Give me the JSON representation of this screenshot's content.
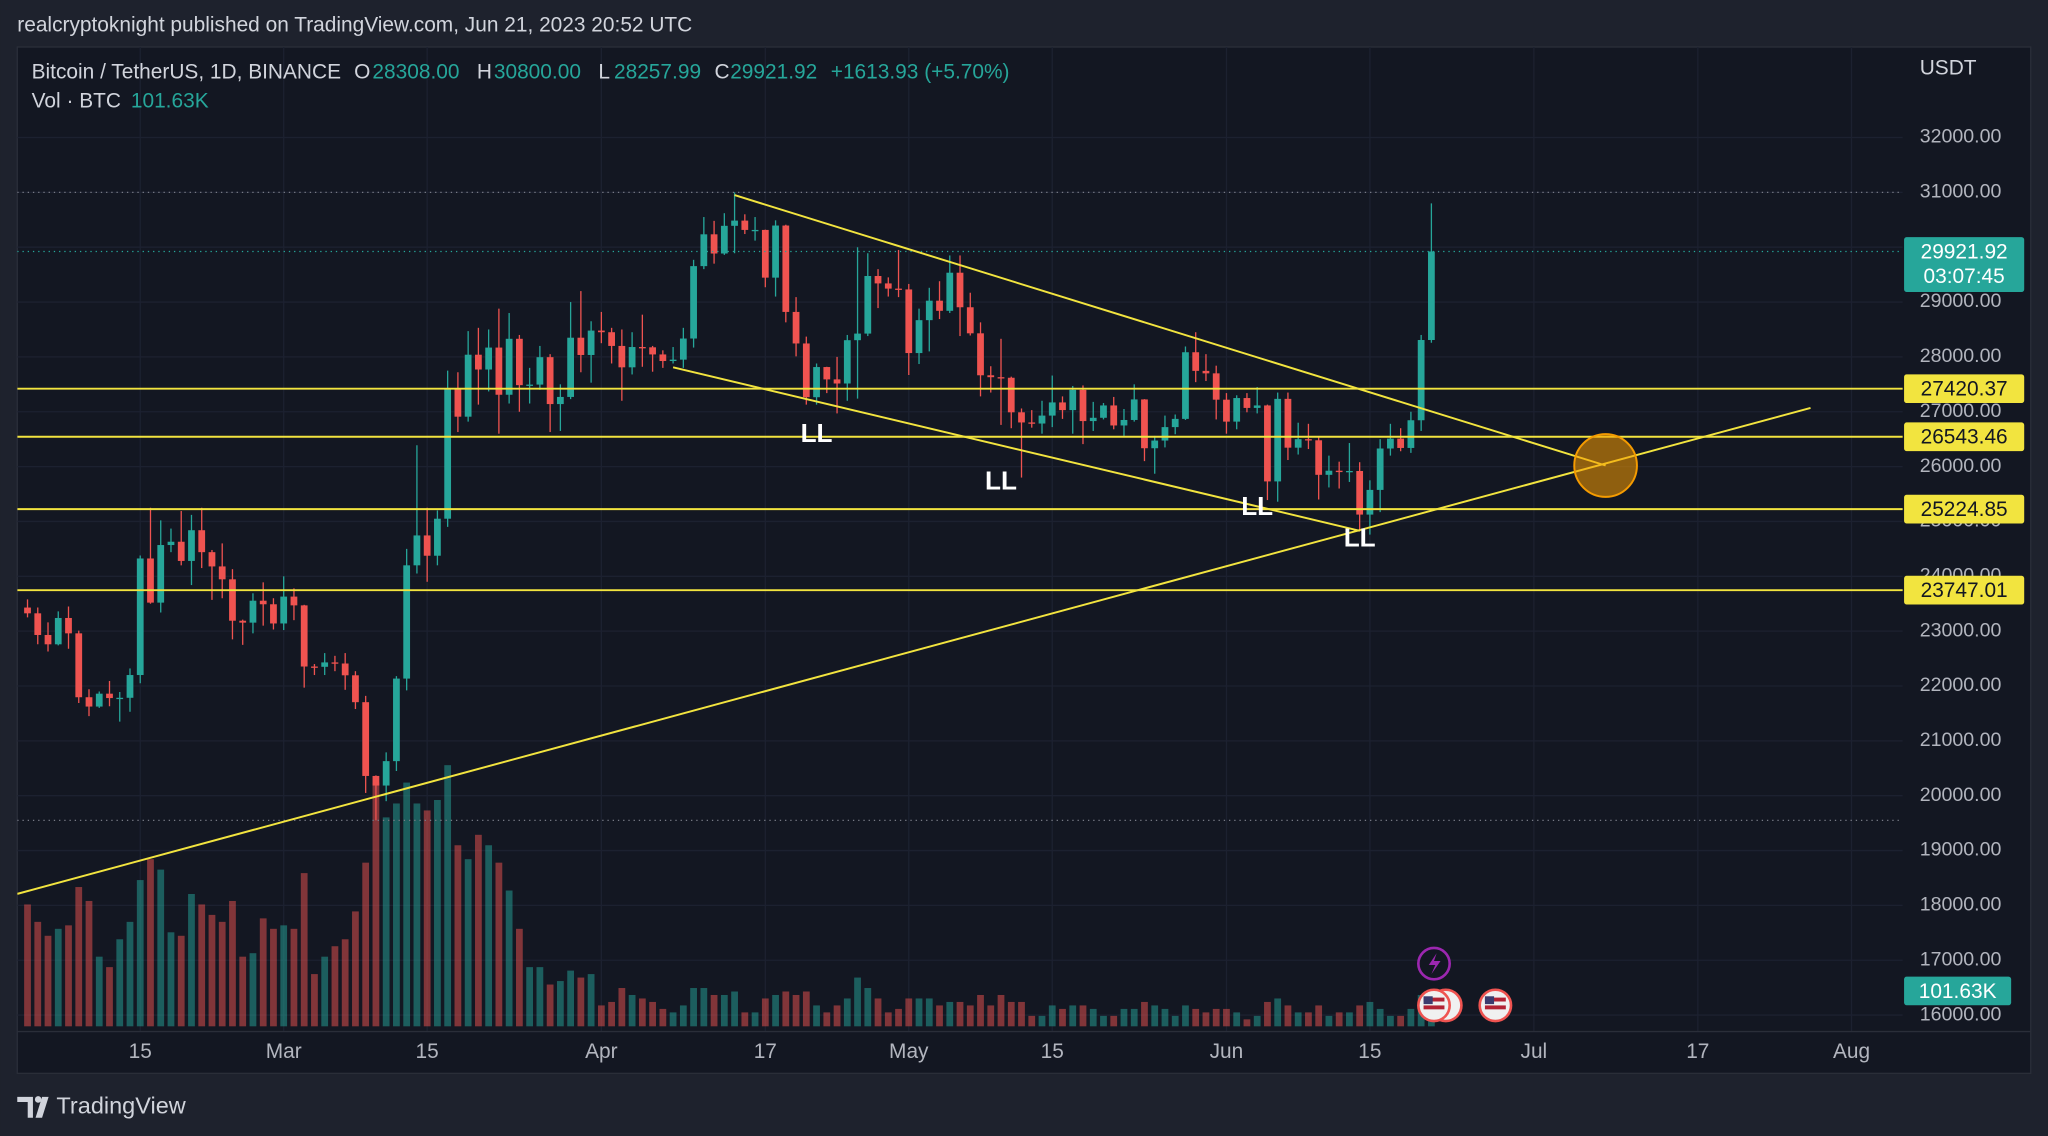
{
  "header": {
    "publisher": "realcryptoknight published on TradingView.com, Jun 21, 2023 20:52 UTC"
  },
  "legend": {
    "symbol": "Bitcoin / TetherUS, 1D, BINANCE",
    "o_key": "O",
    "open": "28308.00",
    "h_key": "H",
    "high": "30800.00",
    "l_key": "L",
    "low": "28257.99",
    "c_key": "C",
    "close": "29921.92",
    "change": "+1613.93 (+5.70%)",
    "volume_name": "Vol · BTC"
  },
  "footer": {
    "brand": "TradingView"
  },
  "chart_data": {
    "type": "candlestick",
    "price_unit": "USDT",
    "countdown": "03:07:45",
    "up_color": "#26a69a",
    "down_color": "#ef5350",
    "line_color": "#f2e43f",
    "xlim": [
      "Feb 3",
      "Aug 6"
    ],
    "xticks": [
      {
        "value": "Feb 15",
        "label": "15"
      },
      {
        "value": "Mar 1",
        "label": "Mar"
      },
      {
        "value": "Mar 15",
        "label": "15"
      },
      {
        "value": "Apr 1",
        "label": "Apr"
      },
      {
        "value": "Apr 17",
        "label": "17"
      },
      {
        "value": "May 1",
        "label": "May"
      },
      {
        "value": "May 15",
        "label": "15"
      },
      {
        "value": "Jun 1",
        "label": "Jun"
      },
      {
        "value": "Jun 15",
        "label": "15"
      },
      {
        "value": "Jul 1",
        "label": "Jul"
      },
      {
        "value": "Jul 17",
        "label": "17"
      },
      {
        "value": "Aug 1",
        "label": "Aug"
      }
    ],
    "ylim": [
      15700,
      33650
    ],
    "yticks": [
      {
        "value": 16000,
        "label": "16000.00"
      },
      {
        "value": 17000,
        "label": "17000.00"
      },
      {
        "value": 18000,
        "label": "18000.00"
      },
      {
        "value": 19000,
        "label": "19000.00"
      },
      {
        "value": 20000,
        "label": "20000.00"
      },
      {
        "value": 21000,
        "label": "21000.00"
      },
      {
        "value": 22000,
        "label": "22000.00"
      },
      {
        "value": 23000,
        "label": "23000.00"
      },
      {
        "value": 24000,
        "label": "24000.00"
      },
      {
        "value": 25000,
        "label": "25000.00"
      },
      {
        "value": 26000,
        "label": "26000.00"
      },
      {
        "value": 27000,
        "label": "27000.00"
      },
      {
        "value": 28000,
        "label": "28000.00"
      },
      {
        "value": 29000,
        "label": "29000.00"
      },
      {
        "value": 30000,
        "label": "30000.00"
      },
      {
        "value": 31000,
        "label": "31000.00"
      },
      {
        "value": 32000,
        "label": "32000.00"
      }
    ],
    "grid": true,
    "x": [
      "Feb 4",
      "Feb 5",
      "Feb 6",
      "Feb 7",
      "Feb 8",
      "Feb 9",
      "Feb 10",
      "Feb 11",
      "Feb 12",
      "Feb 13",
      "Feb 14",
      "Feb 15",
      "Feb 16",
      "Feb 17",
      "Feb 18",
      "Feb 19",
      "Feb 20",
      "Feb 21",
      "Feb 22",
      "Feb 23",
      "Feb 24",
      "Feb 25",
      "Feb 26",
      "Feb 27",
      "Feb 28",
      "Mar 1",
      "Mar 2",
      "Mar 3",
      "Mar 4",
      "Mar 5",
      "Mar 6",
      "Mar 7",
      "Mar 8",
      "Mar 9",
      "Mar 10",
      "Mar 11",
      "Mar 12",
      "Mar 13",
      "Mar 14",
      "Mar 15",
      "Mar 16",
      "Mar 17",
      "Mar 18",
      "Mar 19",
      "Mar 20",
      "Mar 21",
      "Mar 22",
      "Mar 23",
      "Mar 24",
      "Mar 25",
      "Mar 26",
      "Mar 27",
      "Mar 28",
      "Mar 29",
      "Mar 30",
      "Mar 31",
      "Apr 1",
      "Apr 2",
      "Apr 3",
      "Apr 4",
      "Apr 5",
      "Apr 6",
      "Apr 7",
      "Apr 8",
      "Apr 9",
      "Apr 10",
      "Apr 11",
      "Apr 12",
      "Apr 13",
      "Apr 14",
      "Apr 15",
      "Apr 16",
      "Apr 17",
      "Apr 18",
      "Apr 19",
      "Apr 20",
      "Apr 21",
      "Apr 22",
      "Apr 23",
      "Apr 24",
      "Apr 25",
      "Apr 26",
      "Apr 27",
      "Apr 28",
      "Apr 29",
      "Apr 30",
      "May 1",
      "May 2",
      "May 3",
      "May 4",
      "May 5",
      "May 6",
      "May 7",
      "May 8",
      "May 9",
      "May 10",
      "May 11",
      "May 12",
      "May 13",
      "May 14",
      "May 15",
      "May 16",
      "May 17",
      "May 18",
      "May 19",
      "May 20",
      "May 21",
      "May 22",
      "May 23",
      "May 24",
      "May 25",
      "May 26",
      "May 27",
      "May 28",
      "May 29",
      "May 30",
      "May 31",
      "Jun 1",
      "Jun 2",
      "Jun 3",
      "Jun 4",
      "Jun 5",
      "Jun 6",
      "Jun 7",
      "Jun 8",
      "Jun 9",
      "Jun 10",
      "Jun 11",
      "Jun 12",
      "Jun 13",
      "Jun 14",
      "Jun 15",
      "Jun 16",
      "Jun 17",
      "Jun 18",
      "Jun 19",
      "Jun 20",
      "Jun 21"
    ],
    "open": [
      23430,
      23325,
      22930,
      22760,
      23240,
      22960,
      21795,
      21625,
      21860,
      21780,
      21785,
      22200,
      24325,
      23520,
      24570,
      24630,
      24280,
      24840,
      24440,
      24180,
      23945,
      23190,
      23155,
      23555,
      23490,
      23140,
      23630,
      23470,
      22355,
      22350,
      22430,
      22410,
      22195,
      21705,
      20360,
      20185,
      20630,
      22135,
      24200,
      24745,
      24375,
      25050,
      27425,
      26910,
      28040,
      27770,
      28170,
      27310,
      28330,
      27485,
      27495,
      27995,
      27140,
      27270,
      28350,
      28035,
      28480,
      28450,
      28200,
      27810,
      28180,
      28175,
      28045,
      27925,
      27950,
      28335,
      29655,
      30235,
      29885,
      30390,
      30485,
      30315,
      30315,
      29445,
      30395,
      28820,
      28245,
      27265,
      27815,
      27590,
      27515,
      28305,
      28425,
      29475,
      29340,
      29245,
      29230,
      28070,
      28670,
      29025,
      28840,
      29535,
      28905,
      28430,
      27665,
      27630,
      27620,
      26990,
      26805,
      26785,
      26930,
      27170,
      27030,
      27400,
      26830,
      26890,
      27115,
      26750,
      26850,
      27225,
      26335,
      26475,
      26720,
      26870,
      28085,
      27745,
      27700,
      27220,
      26820,
      27250,
      27070,
      27115,
      25730,
      27235,
      26345,
      26500,
      26480,
      25850,
      25925,
      25900,
      25920,
      25125,
      25575,
      26330,
      26510,
      26340,
      26845,
      28308
    ],
    "high": [
      23580,
      23430,
      23160,
      23360,
      23450,
      23010,
      21940,
      21900,
      22090,
      21890,
      22320,
      24380,
      25250,
      25020,
      24870,
      25190,
      25120,
      25250,
      24480,
      24600,
      24130,
      23210,
      23690,
      23890,
      23600,
      24000,
      23780,
      23480,
      22400,
      22600,
      22550,
      22600,
      22270,
      21820,
      20370,
      20790,
      22180,
      24500,
      26390,
      25250,
      25200,
      27750,
      27720,
      28470,
      28530,
      28500,
      28880,
      28800,
      28400,
      27800,
      28200,
      28050,
      27500,
      29000,
      29200,
      28650,
      28820,
      28530,
      28500,
      28450,
      28770,
      28200,
      28120,
      28180,
      28530,
      29770,
      30550,
      30480,
      30620,
      31000,
      30600,
      30550,
      30320,
      30490,
      30410,
      29090,
      28370,
      27880,
      27820,
      28000,
      28400,
      30000,
      29890,
      29600,
      29450,
      29950,
      29330,
      28880,
      29260,
      29380,
      29850,
      29850,
      29170,
      28630,
      27830,
      28330,
      27640,
      27060,
      27030,
      27200,
      27660,
      27280,
      27470,
      27480,
      27180,
      27160,
      27270,
      27050,
      27500,
      27230,
      26560,
      26930,
      26950,
      28190,
      28450,
      28050,
      27840,
      27340,
      27300,
      27340,
      27450,
      27130,
      27350,
      27350,
      26800,
      26780,
      26530,
      26200,
      26090,
      26430,
      26080,
      25750,
      26500,
      26780,
      26700,
      27000,
      28400,
      30800
    ],
    "low": [
      23250,
      22760,
      22630,
      22740,
      22680,
      21690,
      21450,
      21600,
      21630,
      21350,
      21530,
      22050,
      23500,
      23340,
      24440,
      24200,
      23840,
      24150,
      23570,
      23600,
      22850,
      22750,
      22960,
      23100,
      23030,
      23020,
      23200,
      21970,
      22200,
      22200,
      22270,
      21930,
      21580,
      20050,
      19550,
      19900,
      20450,
      21920,
      24050,
      23900,
      24200,
      24900,
      26630,
      26820,
      27130,
      27370,
      26600,
      27150,
      27000,
      27150,
      27400,
      26630,
      26650,
      27230,
      27720,
      27530,
      28250,
      27880,
      27200,
      27680,
      27820,
      27730,
      27800,
      27880,
      27800,
      28170,
      29600,
      29700,
      29860,
      29890,
      30240,
      30120,
      29270,
      29100,
      28630,
      28010,
      27130,
      27130,
      27340,
      26970,
      27200,
      27240,
      28380,
      28890,
      29100,
      29090,
      27670,
      27870,
      28100,
      28690,
      28800,
      28380,
      28390,
      27280,
      27350,
      26760,
      26700,
      25800,
      26710,
      26600,
      26720,
      26870,
      26600,
      26410,
      26650,
      26860,
      26680,
      26560,
      26820,
      26100,
      25870,
      26350,
      26590,
      26850,
      27540,
      27560,
      26860,
      26600,
      26680,
      26990,
      26970,
      25390,
      25360,
      26120,
      26220,
      26320,
      25400,
      25620,
      25600,
      25720,
      24820,
      24760,
      25170,
      26200,
      26280,
      26250,
      26650,
      28257.99
    ],
    "close": [
      23325,
      22930,
      22760,
      23240,
      22960,
      21795,
      21625,
      21860,
      21780,
      21785,
      22200,
      24325,
      23520,
      24570,
      24630,
      24280,
      24840,
      24440,
      24180,
      23945,
      23190,
      23155,
      23555,
      23490,
      23140,
      23630,
      23470,
      22355,
      22350,
      22430,
      22410,
      22195,
      21705,
      20360,
      20185,
      20630,
      22135,
      24200,
      24745,
      24375,
      25050,
      27425,
      26910,
      28040,
      27770,
      28170,
      27310,
      28330,
      27485,
      27495,
      27995,
      27140,
      27270,
      28350,
      28035,
      28480,
      28450,
      28200,
      27810,
      28180,
      28175,
      28045,
      27925,
      27950,
      28335,
      29655,
      30235,
      29885,
      30390,
      30485,
      30315,
      30315,
      29445,
      30395,
      28820,
      28245,
      27265,
      27815,
      27590,
      27515,
      28305,
      28425,
      29475,
      29340,
      29245,
      29230,
      28070,
      28670,
      29025,
      28840,
      29535,
      28905,
      28430,
      27665,
      27630,
      27620,
      26990,
      26805,
      26785,
      26930,
      27170,
      27030,
      27400,
      26830,
      26890,
      27115,
      26750,
      26850,
      27225,
      26335,
      26475,
      26720,
      26870,
      28085,
      27745,
      27700,
      27220,
      26820,
      27250,
      27070,
      27115,
      25730,
      27235,
      26345,
      26500,
      26480,
      25850,
      25925,
      25900,
      25920,
      25125,
      25575,
      26330,
      26510,
      26340,
      26845,
      28308,
      29921.92
    ],
    "volume": [
      350000,
      300000,
      260000,
      280000,
      290000,
      400000,
      360000,
      200000,
      170000,
      250000,
      300000,
      420000,
      480000,
      450000,
      270000,
      260000,
      380000,
      350000,
      320000,
      300000,
      360000,
      200000,
      210000,
      310000,
      280000,
      290000,
      280000,
      440000,
      150000,
      200000,
      230000,
      250000,
      330000,
      470000,
      700000,
      600000,
      640000,
      700000,
      640000,
      620000,
      650000,
      750000,
      520000,
      480000,
      550000,
      520000,
      470000,
      390000,
      280000,
      170000,
      170000,
      120000,
      130000,
      160000,
      140000,
      150000,
      60000,
      70000,
      110000,
      90000,
      80000,
      70000,
      50000,
      40000,
      60000,
      110000,
      110000,
      90000,
      90000,
      100000,
      40000,
      40000,
      80000,
      90000,
      100000,
      90000,
      100000,
      60000,
      40000,
      60000,
      80000,
      140000,
      110000,
      80000,
      40000,
      50000,
      80000,
      80000,
      80000,
      60000,
      70000,
      70000,
      60000,
      90000,
      60000,
      90000,
      70000,
      70000,
      30000,
      30000,
      60000,
      50000,
      60000,
      60000,
      50000,
      30000,
      30000,
      50000,
      50000,
      70000,
      60000,
      50000,
      30000,
      60000,
      50000,
      40000,
      50000,
      50000,
      40000,
      20000,
      30000,
      70000,
      80000,
      60000,
      40000,
      40000,
      60000,
      30000,
      40000,
      40000,
      60000,
      70000,
      50000,
      30000,
      30000,
      50000,
      90000,
      101630
    ],
    "volume_last_label": "101.63K",
    "levels": [
      27420.37,
      26543.46,
      25224.85,
      23747.01
    ],
    "trendlines": [
      {
        "x": [
          "Apr 14",
          "Jul 8"
        ],
        "y": [
          30950,
          26020
        ]
      },
      {
        "x": [
          "Apr 8",
          "Jun 14"
        ],
        "y": [
          27810,
          24830
        ]
      },
      {
        "x": [
          "Feb 3",
          "Jul 28"
        ],
        "y": [
          18210,
          27070
        ]
      }
    ],
    "annotations": [
      {
        "text": "LL",
        "x": "Apr 22",
        "y": 26570
      },
      {
        "text": "LL",
        "x": "May 10",
        "y": 25710
      },
      {
        "text": "LL",
        "x": "Jun 4",
        "y": 25240
      },
      {
        "text": "LL",
        "x": "Jun 14",
        "y": 24670
      }
    ],
    "highlight": {
      "x": "Jul 8",
      "y": 26020
    }
  }
}
